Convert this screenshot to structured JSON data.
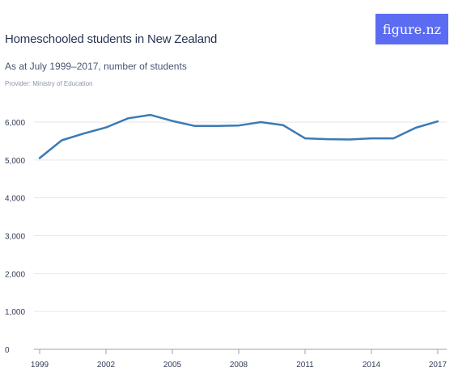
{
  "header": {
    "title": "Homeschooled students in New Zealand",
    "subtitle": "As at July 1999–2017, number of students",
    "provider": "Provider: Ministry of Education",
    "logo_text": "figure.nz",
    "logo_color": "#5b6cf2"
  },
  "chart_data": {
    "type": "line",
    "x": [
      1999,
      2000,
      2001,
      2002,
      2003,
      2004,
      2005,
      2006,
      2007,
      2008,
      2009,
      2010,
      2011,
      2012,
      2013,
      2014,
      2015,
      2016,
      2017
    ],
    "series": [
      {
        "values": [
          5050,
          5520,
          5700,
          5860,
          6100,
          6190,
          6030,
          5900,
          5900,
          5910,
          6000,
          5920,
          5570,
          5550,
          5540,
          5570,
          5570,
          5850,
          6020
        ],
        "color": "#3b7ab5"
      }
    ],
    "x_tick_labels": [
      "1999",
      "2002",
      "2005",
      "2008",
      "2011",
      "2014",
      "2017"
    ],
    "y_tick_labels": [
      "0",
      "1,000",
      "2,000",
      "3,000",
      "4,000",
      "5,000",
      "6,000"
    ],
    "y_ticks": [
      0,
      1000,
      2000,
      3000,
      4000,
      5000,
      6000
    ],
    "x_ticks": [
      1999,
      2002,
      2005,
      2008,
      2011,
      2014,
      2017
    ],
    "ylim": [
      0,
      6000
    ],
    "xlim": [
      1999,
      2017
    ],
    "grid": true,
    "grid_color": "#e4e6ec",
    "axis_color": "#9aa1b2"
  }
}
